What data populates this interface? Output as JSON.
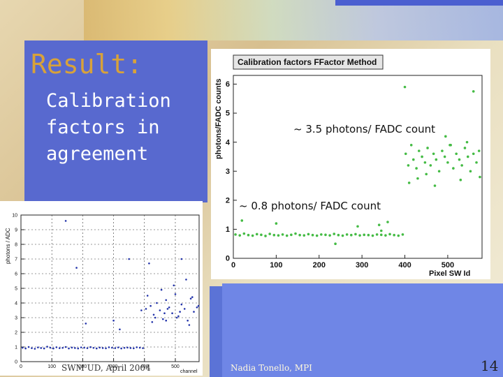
{
  "slide": {
    "title": "Result:",
    "subtitle": "Calibration factors in agreement",
    "footer_left": "SWM UD,  April 2004",
    "footer_mid": "Nadia Tonello, MPI",
    "page_number": "14"
  },
  "chart_data": [
    {
      "type": "scatter",
      "title": "Calibration factors FFactor Method",
      "xlabel": "Pixel SW Id",
      "ylabel": "photons/FADC counts",
      "xlim": [
        0,
        580
      ],
      "ylim": [
        0,
        6.3
      ],
      "xticks": [
        0,
        100,
        200,
        300,
        400,
        500
      ],
      "yticks": [
        0,
        1,
        2,
        3,
        4,
        5,
        6
      ],
      "color": "#44bb44",
      "annotations": [
        "~ 3.5 photons/ FADC count",
        "~ 0.8 photons/ FADC count"
      ],
      "series": [
        {
          "x": [
            5,
            15,
            25,
            35,
            45,
            55,
            65,
            75,
            85,
            95,
            105,
            115,
            125,
            135,
            145,
            155,
            165,
            175,
            185,
            195,
            205,
            215,
            225,
            235,
            245,
            255,
            265,
            275,
            285,
            295,
            305,
            315,
            325,
            335,
            345,
            355,
            365,
            375,
            385,
            395,
            100,
            290,
            20,
            400,
            238,
            340,
            360,
            345,
            560,
            402,
            408,
            415,
            420,
            427,
            433,
            440,
            447,
            453,
            460,
            467,
            473,
            480,
            487,
            493,
            500,
            507,
            513,
            520,
            527,
            533,
            540,
            547,
            553,
            560,
            567,
            573,
            410,
            450,
            495,
            530,
            575,
            505,
            545,
            470,
            430
          ],
          "y": [
            0.82,
            0.79,
            0.85,
            0.8,
            0.78,
            0.83,
            0.81,
            0.77,
            0.84,
            0.8,
            0.79,
            0.82,
            0.78,
            0.81,
            0.85,
            0.8,
            0.79,
            0.83,
            0.8,
            0.78,
            0.82,
            0.81,
            0.79,
            0.84,
            0.8,
            0.78,
            0.82,
            0.8,
            0.83,
            0.79,
            0.81,
            0.8,
            0.78,
            0.82,
            0.81,
            0.79,
            0.83,
            0.8,
            0.78,
            0.82,
            1.2,
            1.1,
            1.3,
            5.9,
            0.5,
            1.15,
            1.25,
            0.95,
            5.75,
            3.6,
            3.2,
            3.9,
            3.4,
            3.1,
            3.7,
            3.5,
            3.3,
            3.8,
            3.2,
            3.6,
            3.4,
            3.0,
            3.7,
            3.5,
            3.3,
            3.9,
            3.1,
            3.6,
            3.4,
            3.2,
            3.8,
            3.5,
            3.0,
            3.6,
            3.3,
            3.7,
            2.6,
            2.9,
            4.2,
            2.7,
            2.8,
            3.9,
            4.0,
            2.5,
            2.75
          ]
        }
      ]
    },
    {
      "type": "scatter",
      "xlabel": "channel",
      "ylabel": "photons / ADC",
      "xlim": [
        0,
        577
      ],
      "ylim": [
        0,
        10
      ],
      "xticks": [
        0,
        100,
        200,
        300,
        400,
        500
      ],
      "yticks": [
        0,
        1,
        2,
        3,
        4,
        5,
        6,
        7,
        8,
        9,
        10
      ],
      "color": "#2233aa",
      "series": [
        {
          "x": [
            5,
            15,
            25,
            35,
            45,
            55,
            65,
            75,
            85,
            95,
            105,
            115,
            125,
            135,
            145,
            155,
            165,
            175,
            185,
            195,
            205,
            215,
            225,
            235,
            245,
            255,
            265,
            275,
            285,
            295,
            305,
            315,
            325,
            335,
            345,
            355,
            365,
            375,
            385,
            395,
            145,
            210,
            300,
            320,
            180,
            350,
            390,
            405,
            410,
            420,
            430,
            440,
            450,
            460,
            470,
            480,
            490,
            500,
            510,
            520,
            530,
            540,
            550,
            560,
            570,
            415,
            435,
            455,
            475,
            495,
            515,
            535,
            555,
            575,
            425,
            465,
            505,
            545,
            520,
            470
          ],
          "y": [
            0.95,
            0.9,
            1.0,
            0.92,
            0.88,
            0.97,
            0.93,
            0.9,
            1.02,
            0.95,
            0.9,
            0.98,
            0.92,
            0.94,
            1.0,
            0.9,
            0.96,
            0.93,
            0.9,
            0.97,
            0.95,
            0.92,
            0.99,
            0.94,
            0.9,
            0.96,
            0.93,
            0.91,
            0.98,
            0.95,
            0.92,
            0.97,
            0.9,
            0.94,
            0.96,
            0.93,
            0.91,
            0.98,
            0.95,
            0.92,
            9.6,
            2.6,
            2.8,
            2.2,
            6.4,
            7.0,
            3.5,
            3.6,
            4.5,
            3.8,
            3.2,
            4.0,
            3.5,
            2.9,
            4.2,
            3.7,
            3.3,
            4.6,
            3.1,
            3.9,
            3.6,
            2.8,
            4.3,
            3.4,
            3.7,
            6.7,
            3.0,
            4.9,
            3.6,
            5.2,
            3.4,
            5.6,
            4.4,
            3.8,
            2.7,
            3.3,
            3.0,
            2.5,
            7.0,
            2.8
          ]
        }
      ]
    }
  ]
}
